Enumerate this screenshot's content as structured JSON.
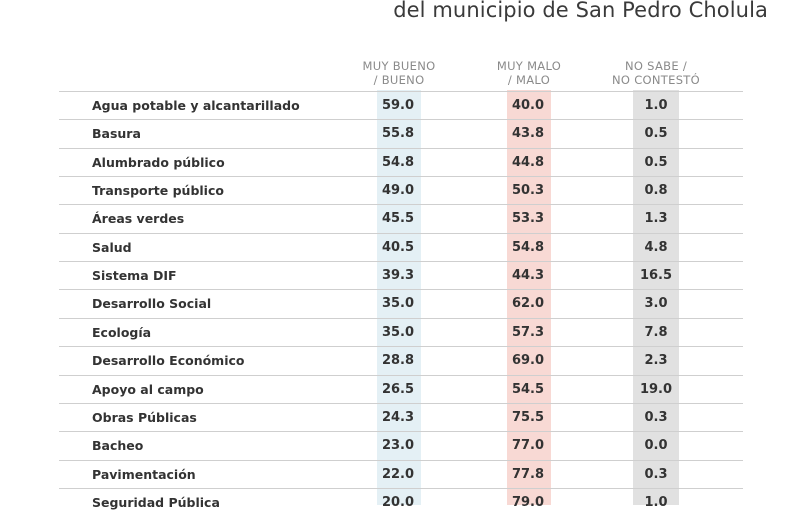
{
  "title": "del municipio de San Pedro Cholula",
  "chart_data": {
    "type": "table",
    "columns": [
      {
        "line1": "MUY BUENO",
        "line2": "/ BUENO"
      },
      {
        "line1": "MUY MALO",
        "line2": "/ MALO"
      },
      {
        "line1": "NO SABE /",
        "line2": "NO CONTESTÓ"
      }
    ],
    "rows": [
      {
        "label": "Agua potable y alcantarillado",
        "values": [
          "59.0",
          "40.0",
          "1.0"
        ]
      },
      {
        "label": "Basura",
        "values": [
          "55.8",
          "43.8",
          "0.5"
        ]
      },
      {
        "label": "Alumbrado público",
        "values": [
          "54.8",
          "44.8",
          "0.5"
        ]
      },
      {
        "label": "Transporte público",
        "values": [
          "49.0",
          "50.3",
          "0.8"
        ]
      },
      {
        "label": "Áreas verdes",
        "values": [
          "45.5",
          "53.3",
          "1.3"
        ]
      },
      {
        "label": "Salud",
        "values": [
          "40.5",
          "54.8",
          "4.8"
        ]
      },
      {
        "label": "Sistema DIF",
        "values": [
          "39.3",
          "44.3",
          "16.5"
        ]
      },
      {
        "label": "Desarrollo Social",
        "values": [
          "35.0",
          "62.0",
          "3.0"
        ]
      },
      {
        "label": "Ecología",
        "values": [
          "35.0",
          "57.3",
          "7.8"
        ]
      },
      {
        "label": "Desarrollo Económico",
        "values": [
          "28.8",
          "69.0",
          "2.3"
        ]
      },
      {
        "label": "Apoyo al campo",
        "values": [
          "26.5",
          "54.5",
          "19.0"
        ]
      },
      {
        "label": "Obras Públicas",
        "values": [
          "24.3",
          "75.5",
          "0.3"
        ]
      },
      {
        "label": "Bacheo",
        "values": [
          "23.0",
          "77.0",
          "0.0"
        ]
      },
      {
        "label": "Pavimentación",
        "values": [
          "22.0",
          "77.8",
          "0.3"
        ]
      },
      {
        "label": "Seguridad Pública",
        "values": [
          "20.0",
          "79.0",
          "1.0"
        ]
      }
    ],
    "colors": {
      "good": "#e4f0f5",
      "bad": "#f8d9d4",
      "ns": "#e1e1e1"
    }
  }
}
